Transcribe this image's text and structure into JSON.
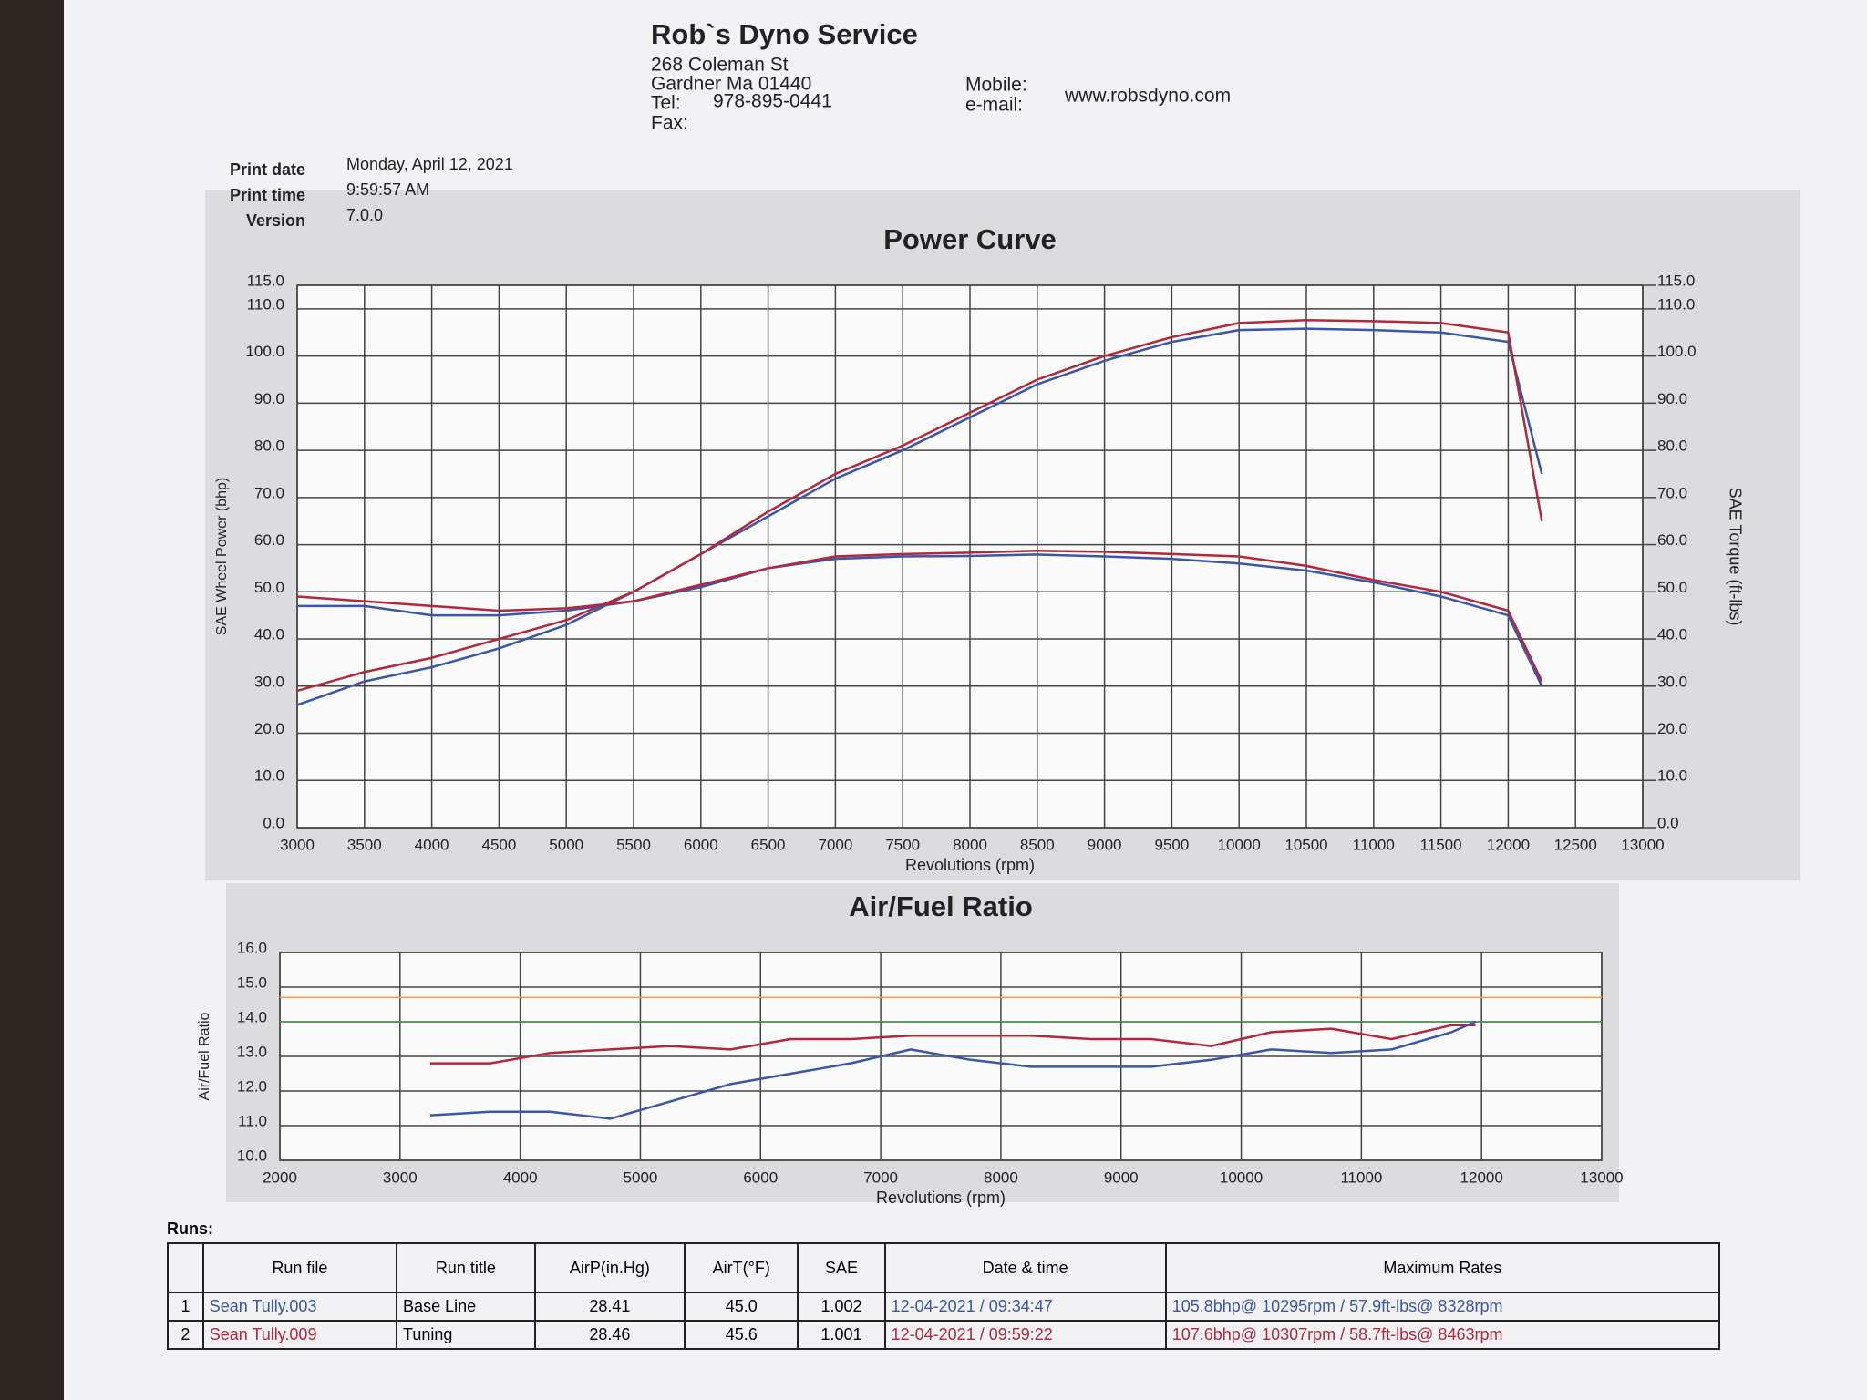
{
  "header": {
    "company": "Rob`s Dyno Service",
    "address": [
      "268 Coleman St",
      "Gardner Ma 01440"
    ],
    "tel_label": "Tel:",
    "tel": "978-895-0441",
    "fax_label": "Fax:",
    "mobile_label": "Mobile:",
    "email_label": "e-mail:",
    "website": "www.robsdyno.com"
  },
  "print_info": [
    {
      "label": "Print date",
      "value": "Monday, April 12, 2021"
    },
    {
      "label": "Print time",
      "value": "9:59:57 AM"
    },
    {
      "label": "Version",
      "value": "7.0.0"
    }
  ],
  "chart_data": [
    {
      "type": "line",
      "title": "Power Curve",
      "x_label": "Revolutions (rpm)",
      "y_label": "SAE Wheel Power (bhp)",
      "y2_label": "SAE Torque (ft-lbs)",
      "xlim": [
        3000,
        13000
      ],
      "xticks": [
        3000,
        3500,
        4000,
        4500,
        5000,
        5500,
        6000,
        6500,
        7000,
        7500,
        8000,
        8500,
        9000,
        9500,
        10000,
        10500,
        11000,
        11500,
        12000,
        12500,
        13000
      ],
      "ylim": [
        0,
        115
      ],
      "yticks": [
        {
          "value": 0,
          "label": "0.0"
        },
        {
          "value": 10,
          "label": "10.0"
        },
        {
          "value": 20,
          "label": "20.0"
        },
        {
          "value": 30,
          "label": "30.0"
        },
        {
          "value": 40,
          "label": "40.0"
        },
        {
          "value": 50,
          "label": "50.0"
        },
        {
          "value": 60,
          "label": "60.0"
        },
        {
          "value": 70,
          "label": "70.0"
        },
        {
          "value": 80,
          "label": "80.0"
        },
        {
          "value": 90,
          "label": "90.0"
        },
        {
          "value": 100,
          "label": "100.0"
        },
        {
          "value": 110,
          "label": "110.0"
        },
        {
          "value": 115,
          "label": "115.0"
        }
      ],
      "y2lim": [
        0,
        115
      ],
      "y2ticks": [
        {
          "value": 0,
          "label": "0.0"
        },
        {
          "value": 10,
          "label": "10.0"
        },
        {
          "value": 20,
          "label": "20.0"
        },
        {
          "value": 30,
          "label": "30.0"
        },
        {
          "value": 40,
          "label": "40.0"
        },
        {
          "value": 50,
          "label": "50.0"
        },
        {
          "value": 60,
          "label": "60.0"
        },
        {
          "value": 70,
          "label": "70.0"
        },
        {
          "value": 80,
          "label": "80.0"
        },
        {
          "value": 90,
          "label": "90.0"
        },
        {
          "value": 100,
          "label": "100.0"
        },
        {
          "value": 110,
          "label": "110.0"
        },
        {
          "value": 115,
          "label": "115.0"
        }
      ],
      "grid": true,
      "x": [
        3000,
        3500,
        4000,
        4500,
        5000,
        5500,
        6000,
        6500,
        7000,
        7500,
        8000,
        8500,
        9000,
        9500,
        10000,
        10500,
        11000,
        11500,
        12000,
        12250
      ],
      "series": [
        {
          "color": "#3b56a8",
          "values": [
            26,
            31,
            34,
            38,
            43,
            50,
            58,
            66,
            74,
            80,
            87,
            94,
            99,
            103,
            105.5,
            105.8,
            105.5,
            105,
            103,
            75
          ]
        },
        {
          "color": "#b3283a",
          "values": [
            29,
            33,
            36,
            40,
            44,
            50,
            58,
            67,
            75,
            81,
            88,
            95,
            100,
            104,
            107,
            107.6,
            107.4,
            107,
            105,
            65
          ]
        },
        {
          "color": "#3b56a8",
          "axis": "y2",
          "values": [
            47,
            47,
            45,
            45,
            46,
            48,
            51,
            55,
            57,
            57.5,
            57.6,
            57.9,
            57.5,
            57,
            56,
            54.5,
            52,
            49,
            45,
            30
          ]
        },
        {
          "color": "#b3283a",
          "axis": "y2",
          "values": [
            49,
            48,
            47,
            46,
            46.5,
            48,
            51.5,
            55,
            57.5,
            58,
            58.3,
            58.7,
            58.5,
            58,
            57.5,
            55.5,
            52.5,
            50,
            46,
            31
          ]
        }
      ]
    },
    {
      "type": "line",
      "title": "Air/Fuel Ratio",
      "x_label": "Revolutions (rpm)",
      "y_label": "Air/Fuel Ratio",
      "xlim": [
        2000,
        13000
      ],
      "xticks": [
        2000,
        3000,
        4000,
        5000,
        6000,
        7000,
        8000,
        9000,
        10000,
        11000,
        12000,
        13000
      ],
      "ylim": [
        10,
        16
      ],
      "yticks": [
        {
          "value": 10,
          "label": "10.0"
        },
        {
          "value": 11,
          "label": "11.0"
        },
        {
          "value": 12,
          "label": "12.0"
        },
        {
          "value": 13,
          "label": "13.0"
        },
        {
          "value": 14,
          "label": "14.0"
        },
        {
          "value": 15,
          "label": "15.0"
        },
        {
          "value": 16,
          "label": "16.0"
        }
      ],
      "grid": true,
      "reference_lines": [
        {
          "value": 14.7,
          "color": "#e8a040"
        },
        {
          "value": 14.0,
          "color": "#4a9a4a"
        }
      ],
      "x": [
        3250,
        3750,
        4250,
        4750,
        5250,
        5750,
        6250,
        6750,
        7250,
        7750,
        8250,
        8750,
        9250,
        9750,
        10250,
        10750,
        11250,
        11750,
        11950
      ],
      "series": [
        {
          "color": "#b3283a",
          "values": [
            12.8,
            12.8,
            13.1,
            13.2,
            13.3,
            13.2,
            13.5,
            13.5,
            13.6,
            13.6,
            13.6,
            13.5,
            13.5,
            13.3,
            13.7,
            13.8,
            13.5,
            13.9,
            13.9
          ]
        },
        {
          "color": "#3b56a8",
          "values": [
            11.3,
            11.4,
            11.4,
            11.2,
            11.7,
            12.2,
            12.5,
            12.8,
            13.2,
            12.9,
            12.7,
            12.7,
            12.7,
            12.9,
            13.2,
            13.1,
            13.2,
            13.7,
            14.0
          ]
        }
      ]
    }
  ],
  "runs": {
    "label": "Runs:",
    "columns": [
      "Run file",
      "Run title",
      "AirP(in.Hg)",
      "AirT(°F)",
      "SAE",
      "Date & time",
      "Maximum Rates"
    ],
    "rows": [
      [
        "1",
        "Sean Tully.003",
        "Base Line",
        "28.41",
        "45.0",
        "1.002",
        "12-04-2021 / 09:34:47",
        "105.8bhp@ 10295rpm / 57.9ft-lbs@ 8328rpm"
      ],
      [
        "2",
        "Sean Tully.009",
        "Tuning",
        "28.46",
        "45.6",
        "1.001",
        "12-04-2021 / 09:59:22",
        "107.6bhp@ 10307rpm / 58.7ft-lbs@ 8463rpm"
      ]
    ],
    "row_colors": [
      "#3b56a8",
      "#b3283a"
    ]
  }
}
